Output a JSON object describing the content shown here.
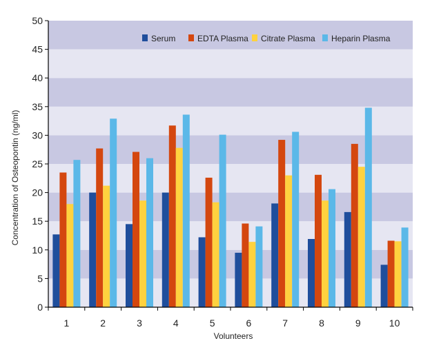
{
  "chart_data": {
    "type": "bar",
    "title": "",
    "xlabel": "Volunteers",
    "ylabel": "Concentration of Osteopontin (ng/ml)",
    "ylim": [
      0,
      50
    ],
    "yticks": [
      0,
      5,
      10,
      15,
      20,
      25,
      30,
      35,
      40,
      45,
      50
    ],
    "categories": [
      "1",
      "2",
      "3",
      "4",
      "5",
      "6",
      "7",
      "8",
      "9",
      "10"
    ],
    "grid": "alternating horizontal bands",
    "legend_position": "top-right",
    "band_colors": [
      "#e6e6f2",
      "#c8c8e2"
    ],
    "series": [
      {
        "name": "Serum",
        "color": "#1f4e9c",
        "values": [
          12.7,
          20.0,
          14.5,
          20.0,
          12.2,
          9.5,
          18.1,
          11.9,
          16.6,
          7.4
        ]
      },
      {
        "name": "EDTA Plasma",
        "color": "#d4470f",
        "values": [
          23.5,
          27.7,
          27.1,
          31.7,
          22.6,
          14.6,
          29.2,
          23.1,
          28.5,
          11.6
        ]
      },
      {
        "name": "Citrate Plasma",
        "color": "#ffd23f",
        "values": [
          18.0,
          21.2,
          18.6,
          27.8,
          18.3,
          11.4,
          23.0,
          18.6,
          24.5,
          11.5
        ]
      },
      {
        "name": "Heparin Plasma",
        "color": "#5bb8e8",
        "values": [
          25.7,
          32.9,
          26.0,
          33.6,
          30.1,
          14.1,
          30.6,
          20.6,
          34.8,
          13.9
        ]
      }
    ]
  }
}
